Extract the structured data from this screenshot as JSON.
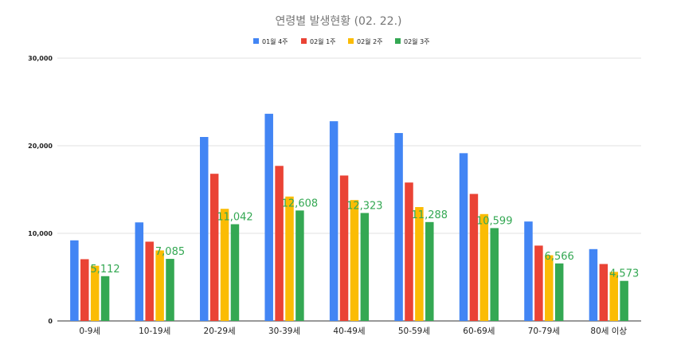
{
  "chart_data": {
    "type": "bar",
    "title": "연령별 발생현황 (02. 22.)",
    "xlabel": "",
    "ylabel": "",
    "categories": [
      "0-9세",
      "10-19세",
      "20-29세",
      "30-39세",
      "40-49세",
      "50-59세",
      "60-69세",
      "70-79세",
      "80세 이상"
    ],
    "series": [
      {
        "name": "01월 4주",
        "color": "#4285f4",
        "values": [
          9200,
          11250,
          21000,
          23650,
          22800,
          21450,
          19150,
          11350,
          8200
        ]
      },
      {
        "name": "02월 1주",
        "color": "#ea4335",
        "values": [
          7050,
          9050,
          16800,
          17700,
          16600,
          15800,
          14500,
          8600,
          6500
        ]
      },
      {
        "name": "02월 2주",
        "color": "#fbbc04",
        "values": [
          6300,
          8050,
          12800,
          14200,
          13800,
          13000,
          12200,
          7500,
          5600
        ]
      },
      {
        "name": "02월 3주",
        "color": "#34a853",
        "values": [
          5112,
          7085,
          11042,
          12608,
          12323,
          11288,
          10599,
          6566,
          4573
        ]
      }
    ],
    "data_labels": [
      "5,112",
      "7,085",
      "11,042",
      "12,608",
      "12,323",
      "11,288",
      "10,599",
      "6,566",
      "4,573"
    ],
    "yticks": [
      "0",
      "10,000",
      "20,000",
      "30,000"
    ],
    "ylim": [
      0,
      30000
    ],
    "grid": true,
    "legend_position": "top"
  }
}
